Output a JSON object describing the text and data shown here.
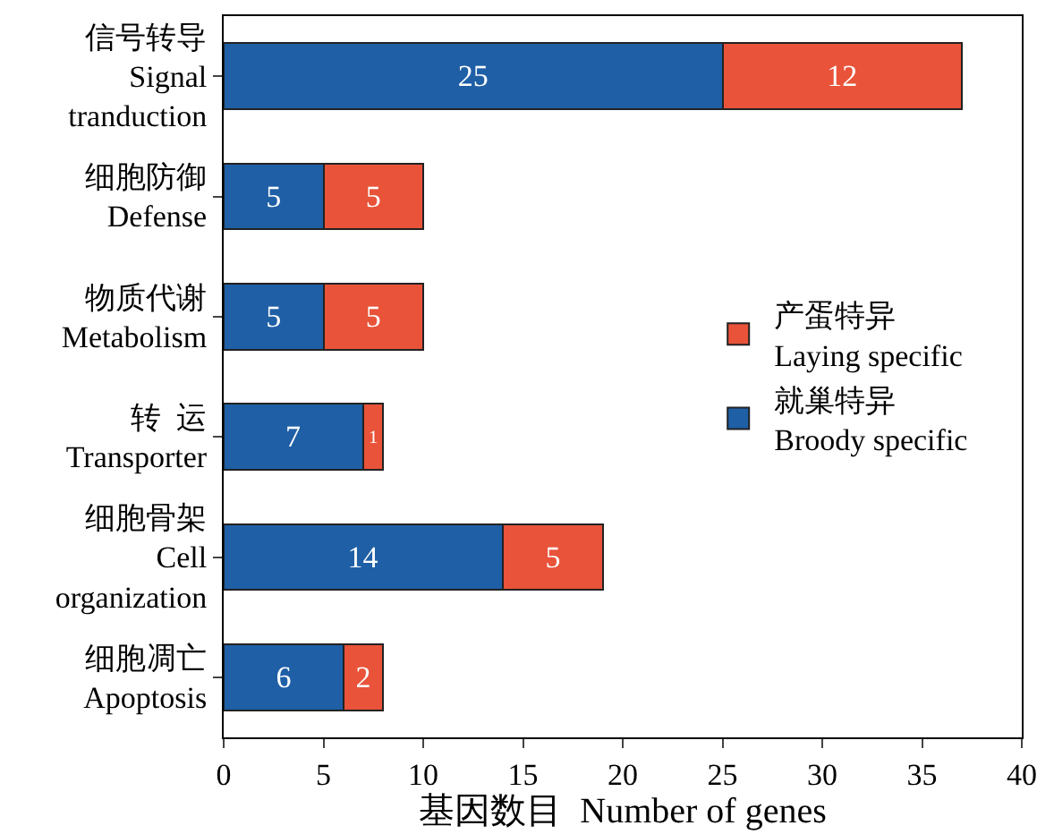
{
  "chart_data": {
    "type": "bar",
    "orientation": "horizontal",
    "stacked": true,
    "categories": [
      "信号转导\nSignal\ntranduction",
      "细胞防御\nDefense",
      "物质代谢\nMetabolism",
      "转  运\nTransporter",
      "细胞骨架\nCell\norganization",
      "细胞凋亡\nApoptosis"
    ],
    "series": [
      {
        "name": "就巢特异\nBroody specific",
        "color": "#1f5fa6",
        "values": [
          25,
          5,
          5,
          7,
          14,
          6
        ]
      },
      {
        "name": "产蛋特异\nLaying specific",
        "color": "#e8533a",
        "values": [
          12,
          5,
          5,
          1,
          5,
          2
        ]
      }
    ],
    "xlabel": "基因数目  Number of genes",
    "xlim": [
      0,
      40
    ],
    "xticks": [
      0,
      5,
      10,
      15,
      20,
      25,
      30,
      35,
      40
    ],
    "data_labels": true,
    "legend": "right"
  }
}
